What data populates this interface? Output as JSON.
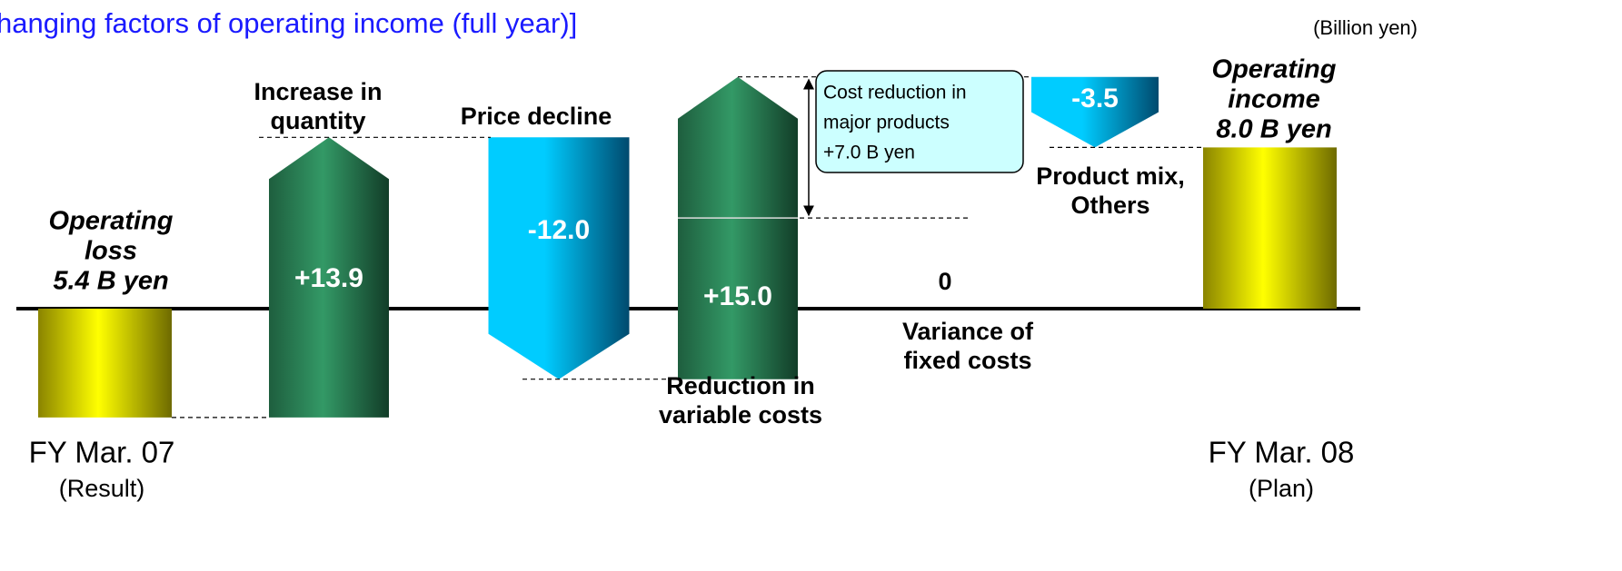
{
  "chart_data": {
    "type": "waterfall",
    "title": "hanging factors of operating income (full year)]",
    "unit": "(Billion yen)",
    "start": {
      "label": [
        "Operating",
        "loss",
        "5.4 B yen"
      ],
      "value": -5.4,
      "period": "FY Mar. 07",
      "note": "(Result)"
    },
    "end": {
      "label": [
        "Operating",
        "income",
        "8.0 B yen"
      ],
      "value": 8.0,
      "period": "FY Mar. 08",
      "note": "(Plan)"
    },
    "categories": [
      [
        "Increase in",
        "quantity"
      ],
      [
        "Price decline"
      ],
      [
        "Reduction in",
        "variable costs"
      ],
      [
        "Variance of",
        "fixed costs"
      ],
      [
        "Product mix,",
        "Others"
      ]
    ],
    "values": [
      13.9,
      -12.0,
      15.0,
      0,
      -3.5
    ],
    "value_labels": [
      "+13.9",
      "-12.0",
      "+15.0",
      "0",
      "-3.5"
    ],
    "annotation": {
      "lines": [
        "Cost reduction in",
        "major products",
        "+7.0 B yen"
      ],
      "value": 7.0
    },
    "total_color": "#ffff00",
    "increase_color": "#339966",
    "decrease_color": "#00ccff"
  }
}
